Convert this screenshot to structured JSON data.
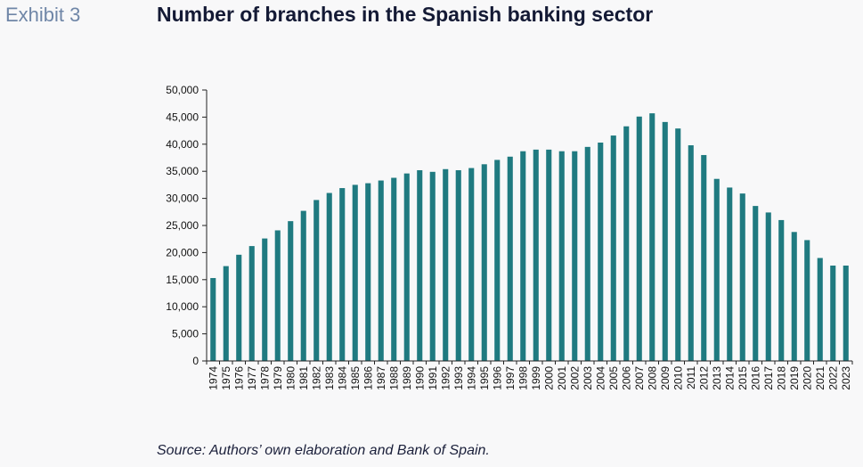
{
  "header": {
    "exhibit": "Exhibit 3",
    "title": "Number of branches in the Spanish banking sector"
  },
  "footer": {
    "source": "Source: Authors’ own elaboration and Bank of Spain."
  },
  "colors": {
    "bar": "#1f7a80",
    "axis": "#222222",
    "background": "#f8f8f9"
  },
  "chart_data": {
    "type": "bar",
    "title": "Number of branches in the Spanish banking sector",
    "xlabel": "",
    "ylabel": "",
    "ylim": [
      0,
      50000
    ],
    "yticks": [
      "0",
      "5,000",
      "10,000",
      "15,000",
      "20,000",
      "25,000",
      "30,000",
      "35,000",
      "40,000",
      "45,000",
      "50,000"
    ],
    "grid": false,
    "legend": "none",
    "categories": [
      "1974",
      "1975",
      "1976",
      "1977",
      "1978",
      "1979",
      "1980",
      "1981",
      "1982",
      "1983",
      "1984",
      "1985",
      "1986",
      "1987",
      "1988",
      "1989",
      "1990",
      "1991",
      "1992",
      "1993",
      "1994",
      "1995",
      "1996",
      "1997",
      "1998",
      "1999",
      "2000",
      "2001",
      "2002",
      "2003",
      "2004",
      "2005",
      "2006",
      "2007",
      "2008",
      "2009",
      "2010",
      "2011",
      "2012",
      "2013",
      "2014",
      "2015",
      "2016",
      "2017",
      "2018",
      "2019",
      "2020",
      "2021",
      "2022",
      "2023"
    ],
    "values": [
      15300,
      17500,
      19600,
      21200,
      22600,
      24100,
      25800,
      27700,
      29700,
      31000,
      31900,
      32500,
      32800,
      33300,
      33800,
      34600,
      35200,
      34900,
      35400,
      35200,
      35600,
      36300,
      37100,
      37700,
      38700,
      39000,
      39000,
      38700,
      38700,
      39500,
      40300,
      41600,
      43300,
      45100,
      45700,
      44100,
      42900,
      39800,
      38000,
      33600,
      32000,
      30900,
      28600,
      27400,
      26000,
      23800,
      22300,
      19000,
      17600,
      17600
    ]
  }
}
